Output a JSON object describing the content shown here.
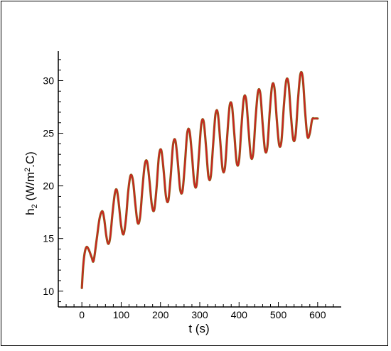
{
  "chart_data": {
    "type": "line",
    "title": "",
    "xlabel": "t (s)",
    "ylabel_parts": {
      "base": "h",
      "sub": "2",
      "unit_open": " (W/m",
      "sup": "2",
      "unit_close": ".C)"
    },
    "xlim": [
      -60,
      660
    ],
    "ylim": [
      8.5,
      32.8
    ],
    "xticks": [
      0,
      100,
      200,
      300,
      400,
      500,
      600
    ],
    "xtick_labels": [
      "0",
      "100",
      "200",
      "300",
      "400",
      "500",
      "600"
    ],
    "yticks": [
      10,
      15,
      20,
      25,
      30
    ],
    "ytick_labels": [
      "10",
      "15",
      "20",
      "25",
      "30"
    ],
    "grid": false,
    "legend": "none",
    "series": [
      {
        "color": "#cc2222",
        "shadow_color": "#8a6a1e",
        "x": [
          0,
          3,
          7,
          12,
          18,
          25,
          30,
          38,
          45,
          52,
          57,
          62,
          67,
          72,
          78,
          84,
          89,
          94,
          100,
          106,
          112,
          118,
          124,
          130,
          136,
          142,
          148,
          154,
          160,
          166,
          172,
          178,
          184,
          190,
          196,
          202,
          208,
          214,
          220,
          226,
          232,
          238,
          244,
          250,
          256,
          262,
          268,
          274,
          280,
          286,
          292,
          298,
          304,
          310,
          316,
          322,
          328,
          334,
          340,
          346,
          352,
          358,
          364,
          370,
          376,
          382,
          388,
          394,
          400,
          406,
          412,
          418,
          424,
          430,
          436,
          442,
          448,
          454,
          460,
          466,
          472,
          478,
          484,
          490,
          496,
          502,
          508,
          514,
          520,
          526,
          532,
          538,
          544,
          550,
          556,
          562,
          568,
          574,
          580,
          586,
          592,
          600
        ],
        "y": [
          10.3,
          12.2,
          13.6,
          14.2,
          13.9,
          13.2,
          12.9,
          15.0,
          16.9,
          17.6,
          16.8,
          15.3,
          14.5,
          15.1,
          17.4,
          19.3,
          19.6,
          18.3,
          16.2,
          15.4,
          16.8,
          19.5,
          21.0,
          20.5,
          18.3,
          16.5,
          17.0,
          19.7,
          22.0,
          22.3,
          20.5,
          18.2,
          17.7,
          19.8,
          22.8,
          23.4,
          21.5,
          19.0,
          18.6,
          20.9,
          23.9,
          24.3,
          22.3,
          19.7,
          19.5,
          22.0,
          25.0,
          25.2,
          23.0,
          20.3,
          20.1,
          23.0,
          25.9,
          26.1,
          23.7,
          20.9,
          20.9,
          23.9,
          26.8,
          26.9,
          24.3,
          21.6,
          21.7,
          24.8,
          27.6,
          27.6,
          24.9,
          22.2,
          22.4,
          25.6,
          28.3,
          28.2,
          25.4,
          22.8,
          23.1,
          26.4,
          28.9,
          28.8,
          25.9,
          23.4,
          23.7,
          27.0,
          29.5,
          29.3,
          26.3,
          23.9,
          24.3,
          27.6,
          30.0,
          29.7,
          26.7,
          24.4,
          24.9,
          28.2,
          30.6,
          30.3,
          27.1,
          24.7,
          25.0,
          26.3,
          26.4,
          26.4
        ]
      }
    ]
  }
}
